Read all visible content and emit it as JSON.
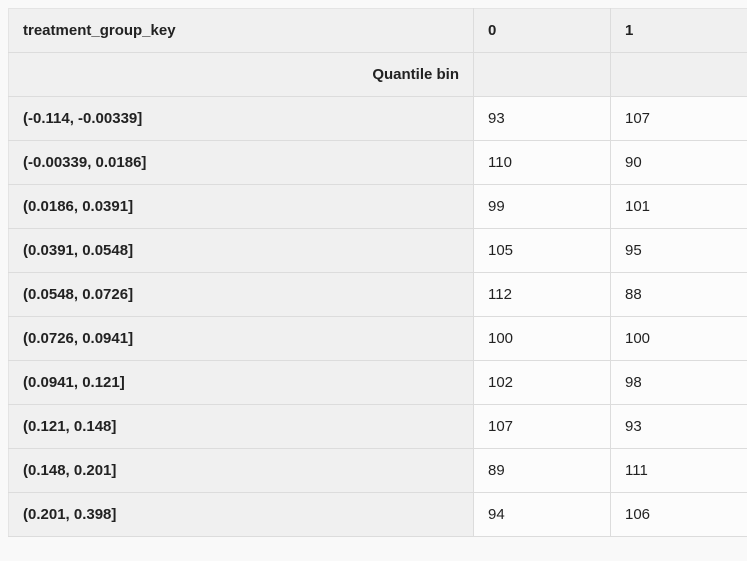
{
  "table": {
    "columns_header_name": "treatment_group_key",
    "columns": [
      "0",
      "1"
    ],
    "index_name": "Quantile bin",
    "rows": [
      {
        "label": "(-0.114, -0.00339]",
        "values": [
          "93",
          "107"
        ]
      },
      {
        "label": "(-0.00339, 0.0186]",
        "values": [
          "110",
          "90"
        ]
      },
      {
        "label": "(0.0186, 0.0391]",
        "values": [
          "99",
          "101"
        ]
      },
      {
        "label": "(0.0391, 0.0548]",
        "values": [
          "105",
          "95"
        ]
      },
      {
        "label": "(0.0548, 0.0726]",
        "values": [
          "112",
          "88"
        ]
      },
      {
        "label": "(0.0726, 0.0941]",
        "values": [
          "100",
          "100"
        ]
      },
      {
        "label": "(0.0941, 0.121]",
        "values": [
          "102",
          "98"
        ]
      },
      {
        "label": "(0.121, 0.148]",
        "values": [
          "107",
          "93"
        ]
      },
      {
        "label": "(0.148, 0.201]",
        "values": [
          "89",
          "111"
        ]
      },
      {
        "label": "(0.201, 0.398]",
        "values": [
          "94",
          "106"
        ]
      }
    ]
  }
}
